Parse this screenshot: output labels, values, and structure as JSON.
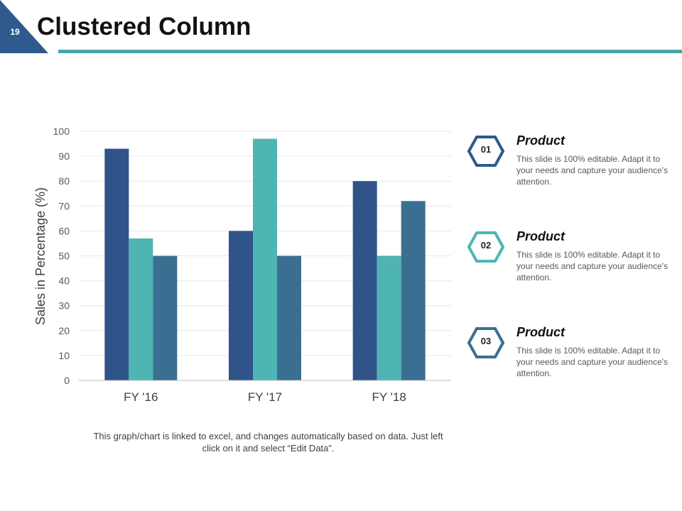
{
  "slide": {
    "number": "19",
    "title": "Clustered Column"
  },
  "colors": {
    "series1": "#30538a",
    "series2": "#4fb5b2",
    "series3": "#3a6f91",
    "accent": "#4aa6a6",
    "corner": "#2f5a8e"
  },
  "chart_data": {
    "type": "bar",
    "title": "",
    "xlabel": "",
    "ylabel": "Sales in Percentage (%)",
    "ylim": [
      0,
      100
    ],
    "yticks": [
      0,
      10,
      20,
      30,
      40,
      50,
      60,
      70,
      80,
      90,
      100
    ],
    "categories": [
      "FY '16",
      "FY '17",
      "FY '18"
    ],
    "series": [
      {
        "name": "Product 01",
        "values": [
          93,
          60,
          80
        ]
      },
      {
        "name": "Product 02",
        "values": [
          57,
          97,
          50
        ]
      },
      {
        "name": "Product 03",
        "values": [
          50,
          50,
          72
        ]
      }
    ],
    "grid": true,
    "legend": "none"
  },
  "footnote": "This graph/chart is linked to excel, and changes automatically based on data. Just left click on it and select “Edit Data”.",
  "products": [
    {
      "number": "01",
      "title": "Product",
      "desc": "This slide is 100% editable. Adapt it to your needs and capture your audience's attention."
    },
    {
      "number": "02",
      "title": "Product",
      "desc": "This slide is 100% editable. Adapt it to your needs and capture your audience's attention."
    },
    {
      "number": "03",
      "title": "Product",
      "desc": "This slide is 100% editable. Adapt it to your needs and capture your audience's attention."
    }
  ]
}
